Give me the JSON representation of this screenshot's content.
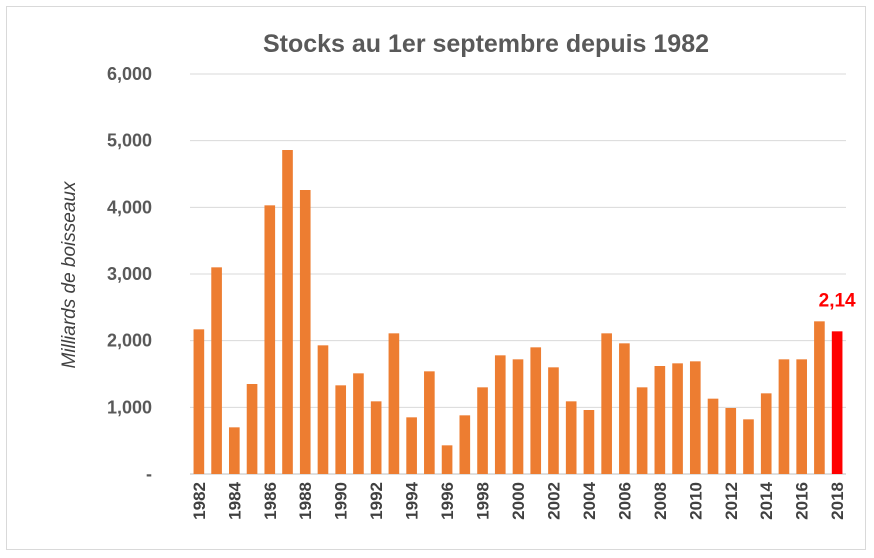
{
  "chart_data": {
    "type": "bar",
    "title": "Stocks au 1er septembre depuis 1982",
    "ylabel": "Milliards de boisseaux",
    "xlabel": "",
    "ylim": [
      0,
      6000
    ],
    "yticks": [
      0,
      1000,
      2000,
      3000,
      4000,
      5000,
      6000
    ],
    "ytick_labels": [
      "-",
      "1,000",
      "2,000",
      "3,000",
      "4,000",
      "5,000",
      "6,000"
    ],
    "grid": true,
    "categories": [
      1982,
      1983,
      1984,
      1985,
      1986,
      1987,
      1988,
      1989,
      1990,
      1991,
      1992,
      1993,
      1994,
      1995,
      1996,
      1997,
      1998,
      1999,
      2000,
      2001,
      2002,
      2003,
      2004,
      2005,
      2006,
      2007,
      2008,
      2009,
      2010,
      2011,
      2012,
      2013,
      2014,
      2015,
      2016,
      2017,
      2018
    ],
    "xtick_labels": [
      "1982",
      "1984",
      "1986",
      "1988",
      "1990",
      "1992",
      "1994",
      "1996",
      "1998",
      "2000",
      "2002",
      "2004",
      "2006",
      "2008",
      "2010",
      "2012",
      "2014",
      "2016",
      "2018"
    ],
    "values": [
      2170,
      3100,
      700,
      1350,
      4030,
      4860,
      4260,
      1930,
      1330,
      1510,
      1090,
      2110,
      850,
      1540,
      430,
      880,
      1300,
      1780,
      1720,
      1900,
      1600,
      1090,
      960,
      2110,
      1960,
      1300,
      1620,
      1660,
      1690,
      1130,
      990,
      820,
      1210,
      1720,
      1720,
      2290,
      2140
    ],
    "colors": {
      "bar": "#ed7d31",
      "highlight": "#ff0000"
    },
    "highlight_index": 36,
    "annotation": "2,14"
  }
}
